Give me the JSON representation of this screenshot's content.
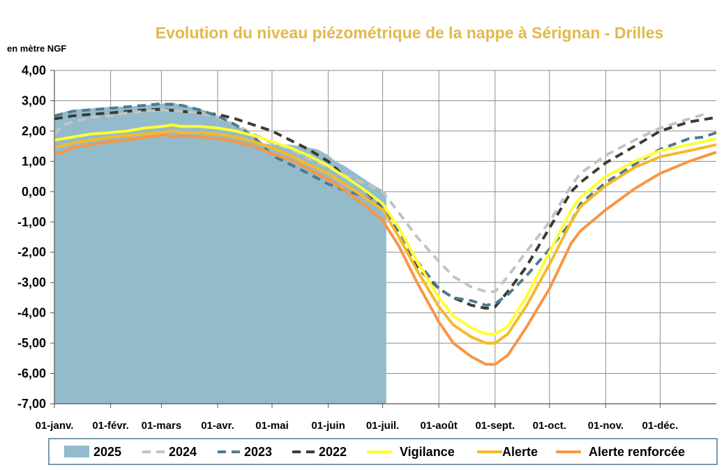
{
  "chart_data": {
    "type": "line",
    "title": "Evolution du niveau piézométrique de la nappe à Sérignan  - Drilles",
    "ylabel": "en mètre NGF",
    "xlabel": "",
    "ylim": [
      -7,
      4
    ],
    "xlim": [
      0,
      365
    ],
    "grid": true,
    "legend_position": "bottom",
    "y_ticks": [
      "4,00",
      "3,00",
      "2,00",
      "1,00",
      "0,00",
      "-1,00",
      "-2,00",
      "-3,00",
      "-4,00",
      "-5,00",
      "-6,00",
      "-7,00"
    ],
    "x_ticks": [
      {
        "label": "01-janv.",
        "day": 0
      },
      {
        "label": "01-févr.",
        "day": 31
      },
      {
        "label": "01-mars",
        "day": 59
      },
      {
        "label": "01-avr.",
        "day": 90
      },
      {
        "label": "01-mai",
        "day": 120
      },
      {
        "label": "01-juin",
        "day": 151
      },
      {
        "label": "01-juil.",
        "day": 181
      },
      {
        "label": "01-août",
        "day": 212
      },
      {
        "label": "01-sept.",
        "day": 243
      },
      {
        "label": "01-oct.",
        "day": 273
      },
      {
        "label": "01-nov.",
        "day": 304
      },
      {
        "label": "01-déc.",
        "day": 334
      }
    ],
    "series": [
      {
        "name": "2025",
        "kind": "area",
        "color": "#93BBCB",
        "x": [
          0,
          10,
          20,
          31,
          40,
          50,
          59,
          65,
          70,
          80,
          90,
          100,
          110,
          115,
          120,
          130,
          140,
          145,
          151,
          155,
          160,
          165,
          170,
          175,
          181,
          183
        ],
        "y": [
          2.55,
          2.7,
          2.75,
          2.8,
          2.8,
          2.85,
          2.9,
          2.95,
          2.85,
          2.75,
          2.5,
          2.2,
          1.85,
          1.6,
          1.55,
          1.55,
          1.45,
          1.4,
          1.2,
          1.0,
          0.85,
          0.65,
          0.45,
          0.25,
          0.05,
          -0.05
        ]
      },
      {
        "name": "2024",
        "kind": "dashed",
        "color": "#C3C3C3",
        "x": [
          0,
          5,
          10,
          20,
          31,
          40,
          59,
          70,
          80,
          90,
          100,
          110,
          120,
          130,
          140,
          151,
          160,
          170,
          181,
          190,
          200,
          212,
          220,
          230,
          238,
          243,
          250,
          260,
          273,
          285,
          290,
          304,
          320,
          334,
          350,
          358
        ],
        "y": [
          1.9,
          2.2,
          2.3,
          2.45,
          2.5,
          2.6,
          2.7,
          2.65,
          2.6,
          2.45,
          2.2,
          1.9,
          1.6,
          1.4,
          1.1,
          0.8,
          0.55,
          0.3,
          0.0,
          -0.7,
          -1.5,
          -2.3,
          -2.8,
          -3.15,
          -3.3,
          -3.3,
          -2.8,
          -2.0,
          -1.0,
          0.2,
          0.6,
          1.2,
          1.7,
          2.1,
          2.4,
          2.55
        ]
      },
      {
        "name": "2023",
        "kind": "dashed",
        "color": "#4E7A90",
        "x": [
          0,
          10,
          20,
          31,
          40,
          50,
          59,
          70,
          80,
          90,
          100,
          110,
          120,
          130,
          140,
          151,
          160,
          170,
          181,
          190,
          200,
          212,
          220,
          230,
          238,
          243,
          250,
          260,
          273,
          285,
          290,
          304,
          320,
          334,
          350,
          358,
          365
        ],
        "y": [
          2.5,
          2.65,
          2.7,
          2.75,
          2.8,
          2.85,
          2.9,
          2.85,
          2.7,
          2.5,
          2.2,
          1.8,
          1.2,
          0.9,
          0.6,
          0.25,
          0.05,
          -0.15,
          -0.5,
          -1.3,
          -2.3,
          -3.2,
          -3.5,
          -3.6,
          -3.75,
          -3.7,
          -3.4,
          -2.8,
          -1.9,
          -1.0,
          -0.4,
          0.3,
          0.9,
          1.4,
          1.75,
          1.8,
          1.95
        ]
      },
      {
        "name": "2022",
        "kind": "dashed",
        "color": "#3B3B30",
        "x": [
          0,
          10,
          20,
          31,
          40,
          50,
          59,
          70,
          80,
          90,
          100,
          110,
          120,
          130,
          140,
          151,
          160,
          170,
          181,
          190,
          200,
          212,
          220,
          230,
          238,
          243,
          250,
          260,
          273,
          285,
          290,
          304,
          320,
          334,
          350,
          365
        ],
        "y": [
          2.4,
          2.5,
          2.55,
          2.6,
          2.65,
          2.7,
          2.72,
          2.65,
          2.6,
          2.55,
          2.4,
          2.2,
          2.0,
          1.7,
          1.4,
          1.0,
          0.5,
          0.1,
          -0.5,
          -1.5,
          -2.5,
          -3.2,
          -3.5,
          -3.75,
          -3.85,
          -3.8,
          -3.3,
          -2.5,
          -1.2,
          0.0,
          0.3,
          0.95,
          1.5,
          2.0,
          2.3,
          2.45
        ]
      },
      {
        "name": "Vigilance",
        "kind": "solid",
        "color": "#FFFF33",
        "x": [
          0,
          10,
          20,
          31,
          40,
          50,
          59,
          65,
          70,
          80,
          90,
          100,
          110,
          120,
          130,
          140,
          151,
          160,
          170,
          181,
          190,
          200,
          212,
          220,
          230,
          238,
          243,
          250,
          260,
          273,
          285,
          290,
          304,
          320,
          334,
          350,
          365
        ],
        "y": [
          1.7,
          1.8,
          1.9,
          1.95,
          2.0,
          2.1,
          2.15,
          2.2,
          2.15,
          2.15,
          2.1,
          2.0,
          1.85,
          1.65,
          1.45,
          1.2,
          0.85,
          0.5,
          0.1,
          -0.4,
          -1.2,
          -2.3,
          -3.5,
          -4.1,
          -4.5,
          -4.7,
          -4.7,
          -4.45,
          -3.5,
          -2.0,
          -0.6,
          -0.2,
          0.5,
          1.0,
          1.35,
          1.55,
          1.75
        ]
      },
      {
        "name": "Alerte",
        "kind": "solid",
        "color": "#F7B928",
        "x": [
          0,
          10,
          20,
          31,
          40,
          50,
          59,
          65,
          70,
          80,
          90,
          100,
          110,
          120,
          130,
          140,
          151,
          160,
          170,
          181,
          190,
          200,
          212,
          220,
          230,
          238,
          243,
          250,
          260,
          273,
          285,
          290,
          304,
          320,
          334,
          350,
          365
        ],
        "y": [
          1.45,
          1.6,
          1.7,
          1.8,
          1.85,
          1.9,
          1.95,
          2.0,
          1.95,
          1.95,
          1.9,
          1.8,
          1.65,
          1.45,
          1.2,
          0.9,
          0.6,
          0.25,
          -0.15,
          -0.6,
          -1.5,
          -2.6,
          -3.8,
          -4.4,
          -4.8,
          -5.0,
          -5.0,
          -4.7,
          -3.8,
          -2.4,
          -1.0,
          -0.5,
          0.2,
          0.8,
          1.15,
          1.35,
          1.55
        ]
      },
      {
        "name": "Alerte renforcée",
        "kind": "solid",
        "color": "#F79646",
        "x": [
          0,
          5,
          10,
          20,
          31,
          40,
          50,
          59,
          62,
          65,
          70,
          80,
          90,
          100,
          110,
          120,
          130,
          140,
          151,
          160,
          170,
          181,
          190,
          200,
          212,
          220,
          230,
          238,
          243,
          250,
          260,
          273,
          285,
          290,
          304,
          320,
          334,
          350,
          365
        ],
        "y": [
          1.25,
          1.3,
          1.45,
          1.55,
          1.65,
          1.7,
          1.8,
          1.85,
          1.9,
          1.8,
          1.85,
          1.8,
          1.75,
          1.65,
          1.5,
          1.25,
          1.05,
          0.75,
          0.4,
          0.05,
          -0.4,
          -0.95,
          -1.8,
          -3.0,
          -4.3,
          -5.0,
          -5.45,
          -5.7,
          -5.7,
          -5.4,
          -4.5,
          -3.2,
          -1.7,
          -1.3,
          -0.6,
          0.1,
          0.6,
          1.0,
          1.3
        ]
      }
    ]
  }
}
